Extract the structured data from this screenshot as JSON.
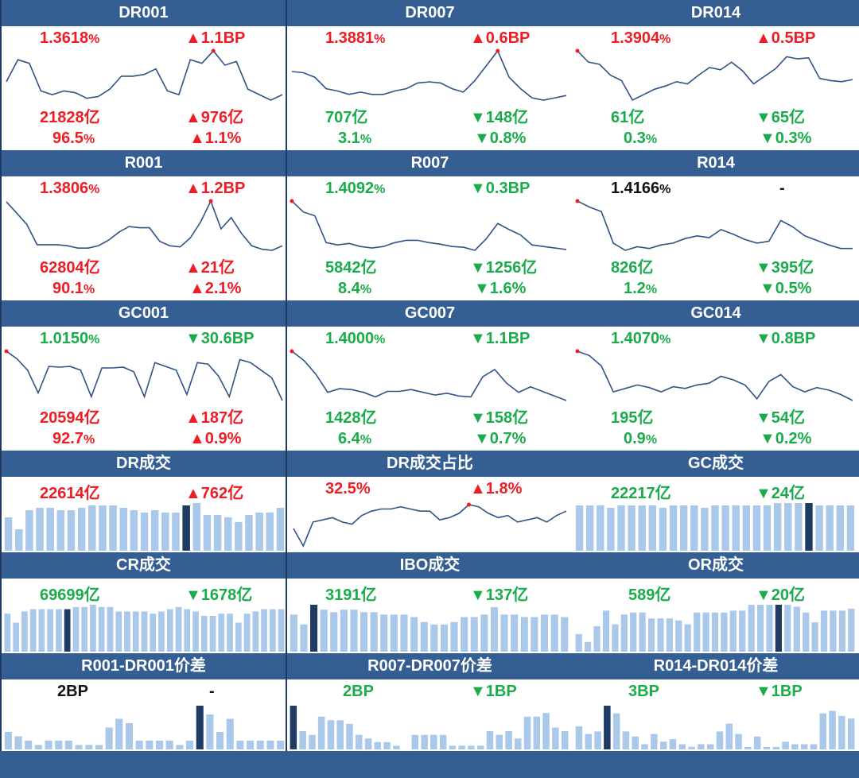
{
  "colors": {
    "up": "#ee1c25",
    "down": "#1aac4a",
    "neutral": "#111111",
    "header": "#355f93",
    "line": "#2f5384",
    "bar": "#a9c8ea",
    "bar_highlight": "#1f3a63"
  },
  "rows": [
    {
      "type": "line4",
      "cells": [
        {
          "title": "DR001",
          "rate": "1.3618",
          "rate_unit": "%",
          "rate_dir": "up",
          "rate_chg": "1.1BP",
          "vol": "21828亿",
          "vol_dir": "up",
          "vol_chg": "976亿",
          "share": "96.5",
          "share_unit": "%",
          "share_dir": "up",
          "share_chg": "1.1%",
          "chart_data": {
            "type": "line",
            "values": [
              1.345,
              1.357,
              1.355,
              1.34,
              1.338,
              1.34,
              1.339,
              1.336,
              1.337,
              1.341,
              1.348,
              1.348,
              1.349,
              1.352,
              1.34,
              1.338,
              1.357,
              1.355,
              1.3618,
              1.354,
              1.356,
              1.341,
              1.338,
              1.335,
              1.338
            ],
            "marker_index": 18
          }
        },
        {
          "title": "DR007",
          "rate": "1.3881",
          "rate_unit": "%",
          "rate_dir": "up",
          "rate_chg": "0.6BP",
          "vol": "707亿",
          "vol_dir": "down",
          "vol_chg": "148亿",
          "share": "3.1",
          "share_unit": "%",
          "share_dir": "down",
          "share_chg": "0.8%",
          "chart_data": {
            "type": "line",
            "values": [
              1.37,
              1.369,
              1.365,
              1.355,
              1.353,
              1.35,
              1.352,
              1.35,
              1.35,
              1.353,
              1.355,
              1.36,
              1.361,
              1.36,
              1.355,
              1.352,
              1.362,
              1.375,
              1.3881,
              1.365,
              1.355,
              1.347,
              1.345,
              1.347,
              1.349
            ],
            "marker_index": 18
          }
        },
        {
          "title": "DR014",
          "rate": "1.3904",
          "rate_unit": "%",
          "rate_dir": "up",
          "rate_chg": "0.5BP",
          "vol": "61亿",
          "vol_dir": "down",
          "vol_chg": "65亿",
          "share": "0.3",
          "share_unit": "%",
          "share_dir": "down",
          "share_chg": "0.3%",
          "chart_data": {
            "type": "line",
            "values": [
              1.3904,
              1.38,
              1.378,
              1.368,
              1.363,
              1.345,
              1.35,
              1.355,
              1.358,
              1.362,
              1.36,
              1.368,
              1.375,
              1.373,
              1.38,
              1.372,
              1.36,
              1.367,
              1.374,
              1.385,
              1.383,
              1.384,
              1.365,
              1.363,
              1.362,
              1.364
            ],
            "marker_index": 0
          }
        }
      ]
    },
    {
      "type": "line4",
      "cells": [
        {
          "title": "R001",
          "rate": "1.3806",
          "rate_unit": "%",
          "rate_dir": "up",
          "rate_chg": "1.2BP",
          "vol": "62804亿",
          "vol_dir": "up",
          "vol_chg": "21亿",
          "share": "90.1",
          "share_unit": "%",
          "share_dir": "up",
          "share_chg": "2.1%",
          "chart_data": {
            "type": "line",
            "values": [
              1.38,
              1.37,
              1.36,
              1.342,
              1.342,
              1.342,
              1.341,
              1.339,
              1.339,
              1.341,
              1.346,
              1.353,
              1.358,
              1.357,
              1.357,
              1.345,
              1.341,
              1.34,
              1.348,
              1.362,
              1.3806,
              1.356,
              1.366,
              1.352,
              1.341,
              1.338,
              1.337,
              1.341
            ],
            "marker_index": 20
          }
        },
        {
          "title": "R007",
          "rate": "1.4092",
          "rate_unit": "%",
          "rate_dir": "down",
          "rate_chg": "0.3BP",
          "vol": "5842亿",
          "vol_dir": "down",
          "vol_chg": "1256亿",
          "share": "8.4",
          "share_unit": "%",
          "share_dir": "down",
          "share_chg": "1.6%",
          "chart_data": {
            "type": "line",
            "values": [
              1.4092,
              1.395,
              1.39,
              1.355,
              1.352,
              1.354,
              1.35,
              1.348,
              1.35,
              1.355,
              1.358,
              1.358,
              1.355,
              1.353,
              1.35,
              1.349,
              1.345,
              1.36,
              1.38,
              1.372,
              1.365,
              1.352,
              1.35,
              1.348,
              1.346
            ],
            "marker_index": 0
          }
        },
        {
          "title": "R014",
          "rate": "1.4166",
          "rate_unit": "%",
          "rate_dir": "neutral",
          "rate_chg": "-",
          "vol": "826亿",
          "vol_dir": "down",
          "vol_chg": "395亿",
          "share": "1.2",
          "share_unit": "%",
          "share_dir": "down",
          "share_chg": "0.5%",
          "chart_data": {
            "type": "line",
            "values": [
              1.4166,
              1.41,
              1.405,
              1.37,
              1.362,
              1.366,
              1.364,
              1.368,
              1.37,
              1.375,
              1.378,
              1.376,
              1.385,
              1.38,
              1.374,
              1.37,
              1.372,
              1.395,
              1.388,
              1.378,
              1.373,
              1.368,
              1.364,
              1.364
            ],
            "marker_index": 0
          }
        }
      ]
    },
    {
      "type": "line4",
      "cells": [
        {
          "title": "GC001",
          "rate": "1.0150",
          "rate_unit": "%",
          "rate_dir": "down",
          "rate_chg": "30.6BP",
          "vol": "20594亿",
          "vol_dir": "up",
          "vol_chg": "187亿",
          "share": "92.7",
          "share_unit": "%",
          "share_dir": "up",
          "share_chg": "0.9%",
          "chart_data": {
            "type": "line",
            "values": [
              1.015,
              1.005,
              0.99,
              0.96,
              0.995,
              0.994,
              0.995,
              0.99,
              0.955,
              0.993,
              0.993,
              0.994,
              0.988,
              0.955,
              1.0,
              0.995,
              0.99,
              0.958,
              1.0,
              0.998,
              0.982,
              0.955,
              1.004,
              1.0,
              0.99,
              0.98,
              0.95
            ],
            "marker_index": 0
          }
        },
        {
          "title": "GC007",
          "rate": "1.4000",
          "rate_unit": "%",
          "rate_dir": "down",
          "rate_chg": "1.1BP",
          "vol": "1428亿",
          "vol_dir": "down",
          "vol_chg": "158亿",
          "share": "6.4",
          "share_unit": "%",
          "share_dir": "down",
          "share_chg": "0.7%",
          "chart_data": {
            "type": "line",
            "values": [
              1.4,
              1.39,
              1.375,
              1.355,
              1.359,
              1.358,
              1.355,
              1.35,
              1.356,
              1.356,
              1.358,
              1.355,
              1.352,
              1.354,
              1.351,
              1.35,
              1.372,
              1.38,
              1.365,
              1.355,
              1.361,
              1.356,
              1.351,
              1.346
            ],
            "marker_index": 0
          }
        },
        {
          "title": "GC014",
          "rate": "1.4070",
          "rate_unit": "%",
          "rate_dir": "down",
          "rate_chg": "0.8BP",
          "vol": "195亿",
          "vol_dir": "down",
          "vol_chg": "54亿",
          "share": "0.9",
          "share_unit": "%",
          "share_dir": "down",
          "share_chg": "0.2%",
          "chart_data": {
            "type": "line",
            "values": [
              1.407,
              1.402,
              1.39,
              1.36,
              1.364,
              1.368,
              1.365,
              1.36,
              1.366,
              1.364,
              1.368,
              1.37,
              1.378,
              1.374,
              1.368,
              1.352,
              1.372,
              1.38,
              1.366,
              1.36,
              1.365,
              1.362,
              1.357,
              1.35
            ],
            "marker_index": 0
          }
        }
      ]
    },
    {
      "type": "bar2",
      "cells": [
        {
          "title": "DR成交",
          "v1": "22614亿",
          "v1_dir": "up",
          "v2": "762亿",
          "v2_dir": "up",
          "chart_data": {
            "type": "bar",
            "values": [
              14,
              9,
              17,
              18,
              18,
              17,
              17,
              18,
              19,
              19,
              19,
              18,
              17,
              16,
              17,
              16,
              16,
              19,
              20,
              15,
              15,
              14,
              12,
              15,
              16,
              16,
              18
            ],
            "highlight_index": 17
          }
        },
        {
          "title": "DR成交占比",
          "v1": "32.5%",
          "v1_dir": "up",
          "v2": "1.8%",
          "v2_dir": "up",
          "chart_data": {
            "type": "line",
            "values": [
              28,
              20,
              31,
              32,
              33,
              31,
              30,
              34,
              36,
              37,
              37,
              38,
              37,
              36,
              36,
              32,
              33,
              35,
              39,
              38,
              35,
              33,
              34,
              31,
              32,
              33,
              31,
              34,
              36
            ],
            "marker_index": 18
          }
        },
        {
          "title": "GC成交",
          "v1": "22217亿",
          "v1_dir": "down",
          "v2": "24亿",
          "v2_dir": "down",
          "chart_data": {
            "type": "bar",
            "values": [
              19,
              19,
              19,
              18,
              19,
              19,
              19,
              19,
              18,
              19,
              19,
              19,
              18,
              19,
              19,
              19,
              19,
              19,
              19,
              20,
              20,
              20,
              20,
              19,
              19,
              19,
              19
            ],
            "highlight_index": 22
          }
        }
      ]
    },
    {
      "type": "bar2",
      "cells": [
        {
          "title": "CR成交",
          "v1": "69699亿",
          "v1_dir": "green",
          "v2": "1678亿",
          "v2_dir": "down",
          "chart_data": {
            "type": "bar",
            "values": [
              17,
              13,
              18,
              19,
              19,
              19,
              19,
              19,
              20,
              20,
              21,
              20,
              20,
              18,
              18,
              18,
              18,
              17,
              18,
              19,
              20,
              19,
              18,
              16,
              16,
              17,
              17,
              13,
              17,
              18,
              19,
              19,
              19
            ],
            "highlight_index": 7
          }
        },
        {
          "title": "IBO成交",
          "v1": "3191亿",
          "v1_dir": "green",
          "v2": "137亿",
          "v2_dir": "down",
          "chart_data": {
            "type": "bar",
            "values": [
              15,
              11,
              19,
              17,
              16,
              17,
              17,
              16,
              16,
              15,
              15,
              15,
              14,
              12,
              11,
              11,
              12,
              14,
              14,
              15,
              18,
              15,
              15,
              14,
              14,
              15,
              15,
              14
            ],
            "highlight_index": 2
          }
        },
        {
          "title": "OR成交",
          "v1": "589亿",
          "v1_dir": "green",
          "v2": "20亿",
          "v2_dir": "down",
          "chart_data": {
            "type": "bar",
            "values": [
              9,
              5,
              13,
              21,
              14,
              19,
              20,
              20,
              17,
              17,
              17,
              16,
              14,
              20,
              20,
              20,
              20,
              21,
              21,
              24,
              24,
              24,
              24,
              24,
              23,
              20,
              15,
              21,
              21,
              21,
              22
            ],
            "highlight_index": 22
          }
        }
      ]
    },
    {
      "type": "bar2",
      "cells": [
        {
          "title": "R001-DR001价差",
          "v1": "2BP",
          "v1_dir": "neutral",
          "v2": "-",
          "v2_dir": "neutral",
          "chart_data": {
            "type": "bar",
            "values": [
              4,
              3,
              2,
              1,
              2,
              2,
              2,
              1,
              1,
              1,
              5,
              7,
              6,
              2,
              2,
              2,
              2,
              1,
              2,
              10,
              8,
              4,
              7,
              2,
              2,
              2,
              2,
              2
            ],
            "highlight_index": 19
          }
        },
        {
          "title": "R007-DR007价差",
          "v1": "2BP",
          "v1_dir": "green",
          "v2": "1BP",
          "v2_dir": "down",
          "chart_data": {
            "type": "bar",
            "values": [
              12,
              5,
              4,
              9,
              8,
              8,
              7,
              4,
              3,
              2,
              2,
              1,
              0,
              4,
              4,
              4,
              4,
              1,
              1,
              1,
              1,
              5,
              4,
              5,
              3,
              9,
              9,
              10,
              6,
              5
            ],
            "highlight_index": 0
          }
        },
        {
          "title": "R014-DR014价差",
          "v1": "3BP",
          "v1_dir": "green",
          "v2": "1BP",
          "v2_dir": "down",
          "chart_data": {
            "type": "bar",
            "values": [
              9,
              6,
              7,
              17,
              14,
              7,
              5,
              2,
              6,
              3,
              4,
              2,
              1,
              2,
              2,
              7,
              10,
              6,
              1,
              5,
              1,
              1,
              3,
              2,
              2,
              2,
              14,
              15,
              13,
              12
            ],
            "highlight_index": 3
          }
        }
      ]
    }
  ]
}
